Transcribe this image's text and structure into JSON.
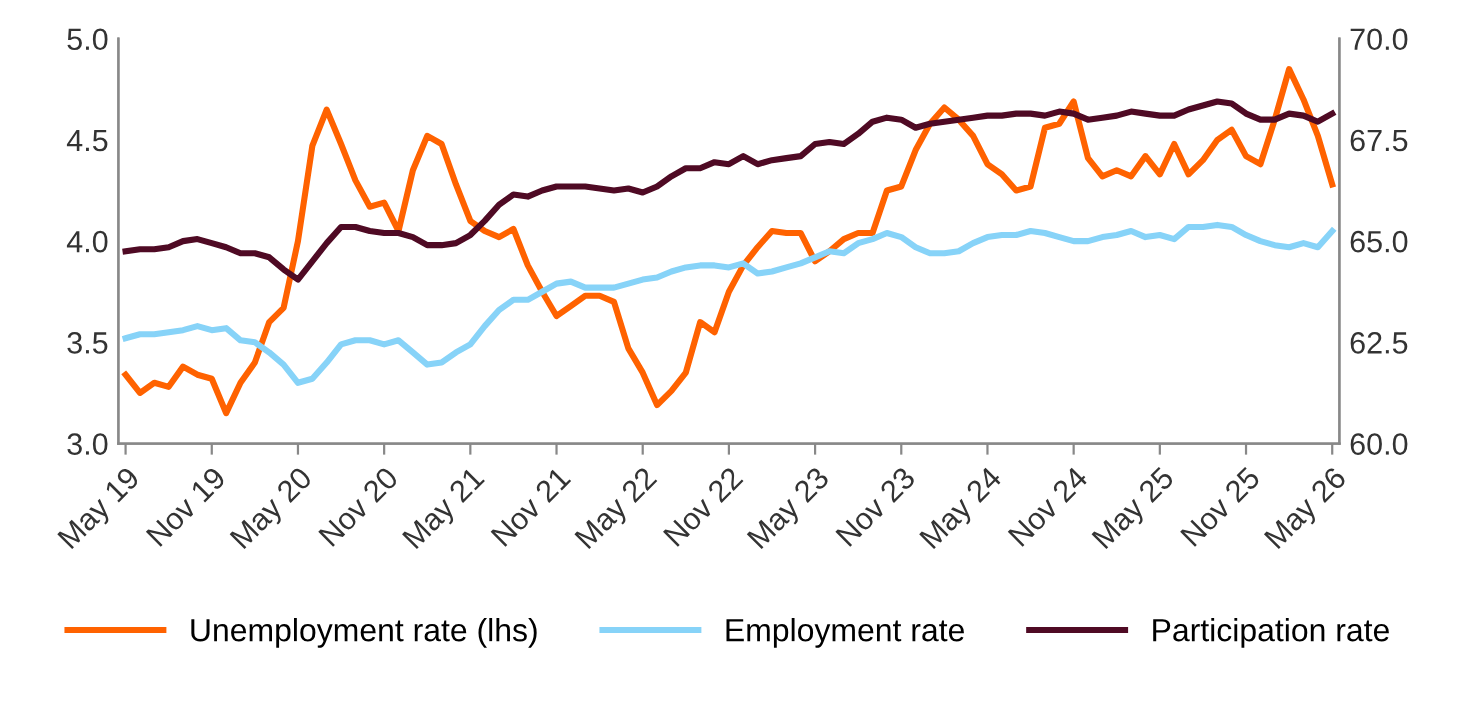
{
  "chart_data": {
    "type": "line",
    "categories": [
      "May 19",
      null,
      null,
      null,
      null,
      null,
      "Nov 19",
      null,
      null,
      null,
      null,
      null,
      "May 20",
      null,
      null,
      null,
      null,
      null,
      "Nov 20",
      null,
      null,
      null,
      null,
      null,
      "May 21",
      null,
      null,
      null,
      null,
      null,
      "Nov 21",
      null,
      null,
      null,
      null,
      null,
      "May 22",
      null,
      null,
      null,
      null,
      null,
      "Nov 22",
      null,
      null,
      null,
      null,
      null,
      "May 23",
      null,
      null,
      null,
      null,
      null,
      "Nov 23",
      null,
      null,
      null,
      null,
      null,
      "May 24",
      null,
      null,
      null,
      null,
      null,
      "Nov 24",
      null,
      null,
      null,
      null,
      null,
      "May 25",
      null,
      null,
      null,
      null,
      null,
      "Nov 25",
      null,
      null,
      null,
      null,
      null,
      "May 26"
    ],
    "series": [
      {
        "name": "Unemployment rate (lhs)",
        "color": "#ff6200",
        "values": [
          3.34,
          3.25,
          3.3,
          3.28,
          3.38,
          3.34,
          3.32,
          3.15,
          3.3,
          3.4,
          3.6,
          3.67,
          4.0,
          4.47,
          4.65,
          4.48,
          4.3,
          4.17,
          4.19,
          4.05,
          4.35,
          4.52,
          4.48,
          4.28,
          4.1,
          4.05,
          4.02,
          4.06,
          3.88,
          3.75,
          3.63,
          3.68,
          3.73,
          3.73,
          3.7,
          3.47,
          3.35,
          3.19,
          3.26,
          3.35,
          3.6,
          3.55,
          3.75,
          3.88,
          3.97,
          4.05,
          4.04,
          4.04,
          3.9,
          3.95,
          4.01,
          4.04,
          4.04,
          4.25,
          4.27,
          4.45,
          4.58,
          4.66,
          4.6,
          4.52,
          4.38,
          4.33,
          4.25,
          4.27,
          4.56,
          4.58,
          4.69,
          4.41,
          4.32,
          4.35,
          4.32,
          4.42,
          4.33,
          4.48,
          4.33,
          4.4,
          4.5,
          4.55,
          4.42,
          4.38,
          4.6,
          4.85,
          4.7,
          4.52,
          4.28
        ]
      },
      {
        "name": "Employment rate",
        "color": "#87d3f8",
        "axis": "y2",
        "values": [
          62.6,
          62.7,
          62.7,
          62.75,
          62.8,
          62.9,
          62.8,
          62.85,
          62.55,
          62.5,
          62.25,
          61.95,
          61.5,
          61.6,
          62.0,
          62.45,
          62.55,
          62.55,
          62.45,
          62.55,
          62.25,
          61.95,
          62.0,
          62.25,
          62.45,
          62.9,
          63.3,
          63.55,
          63.55,
          63.75,
          63.95,
          64.0,
          63.85,
          63.85,
          63.85,
          63.95,
          64.05,
          64.1,
          64.25,
          64.35,
          64.4,
          64.4,
          64.35,
          64.45,
          64.2,
          64.25,
          64.35,
          64.45,
          64.6,
          64.75,
          64.7,
          64.95,
          65.05,
          65.2,
          65.1,
          64.85,
          64.7,
          64.7,
          64.75,
          64.95,
          65.1,
          65.15,
          65.15,
          65.25,
          65.2,
          65.1,
          65.0,
          65.0,
          65.1,
          65.15,
          65.25,
          65.1,
          65.15,
          65.05,
          65.35,
          65.35,
          65.4,
          65.35,
          65.15,
          65.0,
          64.9,
          64.85,
          64.95,
          64.85,
          65.25
        ]
      },
      {
        "name": "Participation rate",
        "color": "#4f0a24",
        "axis": "y2",
        "values": [
          64.75,
          64.8,
          64.8,
          64.85,
          65.0,
          65.05,
          64.95,
          64.85,
          64.7,
          64.7,
          64.6,
          64.3,
          64.05,
          64.5,
          64.95,
          65.35,
          65.35,
          65.25,
          65.2,
          65.2,
          65.1,
          64.9,
          64.9,
          64.95,
          65.15,
          65.5,
          65.9,
          66.15,
          66.1,
          66.25,
          66.35,
          66.35,
          66.35,
          66.3,
          66.25,
          66.3,
          66.2,
          66.35,
          66.6,
          66.8,
          66.8,
          66.95,
          66.9,
          67.1,
          66.9,
          67.0,
          67.05,
          67.1,
          67.4,
          67.45,
          67.4,
          67.65,
          67.95,
          68.05,
          68.0,
          67.8,
          67.9,
          67.95,
          68.0,
          68.05,
          68.1,
          68.1,
          68.15,
          68.15,
          68.1,
          68.2,
          68.15,
          68.0,
          68.05,
          68.1,
          68.2,
          68.15,
          68.1,
          68.1,
          68.25,
          68.35,
          68.45,
          68.4,
          68.15,
          68.0,
          68.0,
          68.15,
          68.1,
          67.95,
          68.15
        ]
      }
    ],
    "ylim": [
      3.0,
      5.0
    ],
    "yticks": [
      {
        "value": 3,
        "label": "3.0"
      },
      {
        "value": 3.5,
        "label": "3.5"
      },
      {
        "value": 4,
        "label": "4.0"
      },
      {
        "value": 4.5,
        "label": "4.5"
      },
      {
        "value": 5,
        "label": "5.0"
      }
    ],
    "y2lim": [
      60.0,
      70.0
    ],
    "y2ticks": [
      {
        "value": 60,
        "label": "60.0"
      },
      {
        "value": 62.5,
        "label": "62.5"
      },
      {
        "value": 65,
        "label": "65.0"
      },
      {
        "value": 67.5,
        "label": "67.5"
      },
      {
        "value": 70,
        "label": "70.0"
      }
    ],
    "legend": "bottom",
    "grid": false,
    "line_style": "solid",
    "marker": "none"
  }
}
